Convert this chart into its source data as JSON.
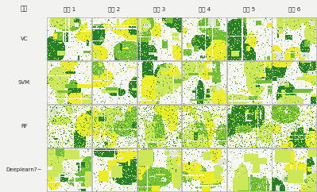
{
  "col_headers": [
    "方法",
    "场景 1",
    "场景 2",
    "场景 3",
    "场景 4",
    "场景 5",
    "场景 6"
  ],
  "row_labels": [
    "VC",
    "SVM",
    "RF",
    "Deeplearn?~"
  ],
  "header_fontsize": 5.5,
  "label_fontsize": 5.0,
  "figure_width": 3.99,
  "figure_height": 2.42,
  "dpi": 100,
  "n_cols": 6,
  "n_rows": 4
}
